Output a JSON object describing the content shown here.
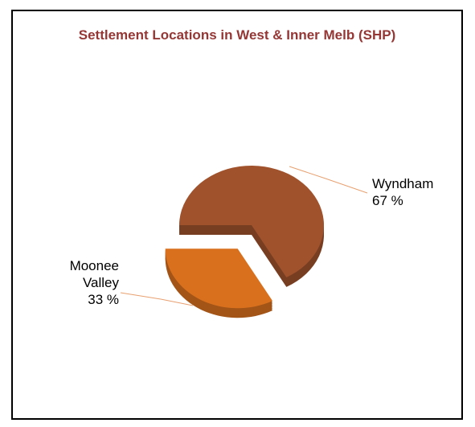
{
  "chart_data": {
    "type": "pie",
    "title": "Settlement Locations in West & Inner Melb (SHP)",
    "categories": [
      "Wyndham",
      "Moonee Valley"
    ],
    "values": [
      67,
      33
    ],
    "value_labels": [
      "67 %",
      "33 %"
    ],
    "colors": [
      "#a0522d",
      "#d9701e"
    ]
  }
}
